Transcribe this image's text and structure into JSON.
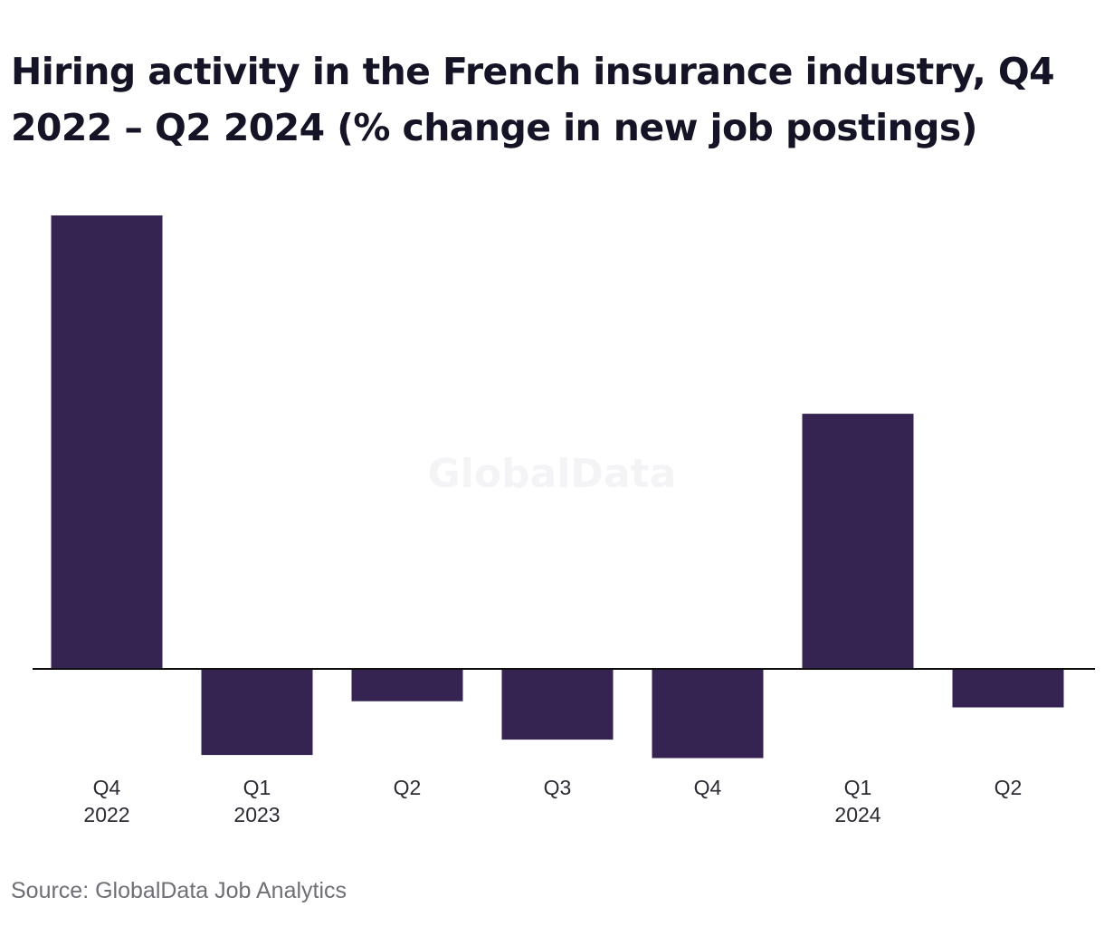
{
  "chart_data": {
    "type": "bar",
    "title": "Hiring activity in the French insurance industry, Q4 2022 – Q2 2024 (% change in new job postings)",
    "xlabel": "",
    "ylabel": "",
    "categories": [
      [
        "Q4",
        "2022"
      ],
      [
        "Q1",
        "2023"
      ],
      [
        "Q2",
        ""
      ],
      [
        "Q3",
        ""
      ],
      [
        "Q4",
        ""
      ],
      [
        "Q1",
        "2024"
      ],
      [
        "Q2",
        ""
      ]
    ],
    "values": [
      29.5,
      -5.6,
      -2.1,
      -4.6,
      -5.8,
      16.6,
      -2.5
    ],
    "ylim": [
      -6,
      30
    ],
    "grid": false,
    "legend": "none",
    "bar_color": "#352352",
    "axis_color": "#111111"
  },
  "watermark": "GlobalData",
  "source": "Source: GlobalData Job Analytics"
}
